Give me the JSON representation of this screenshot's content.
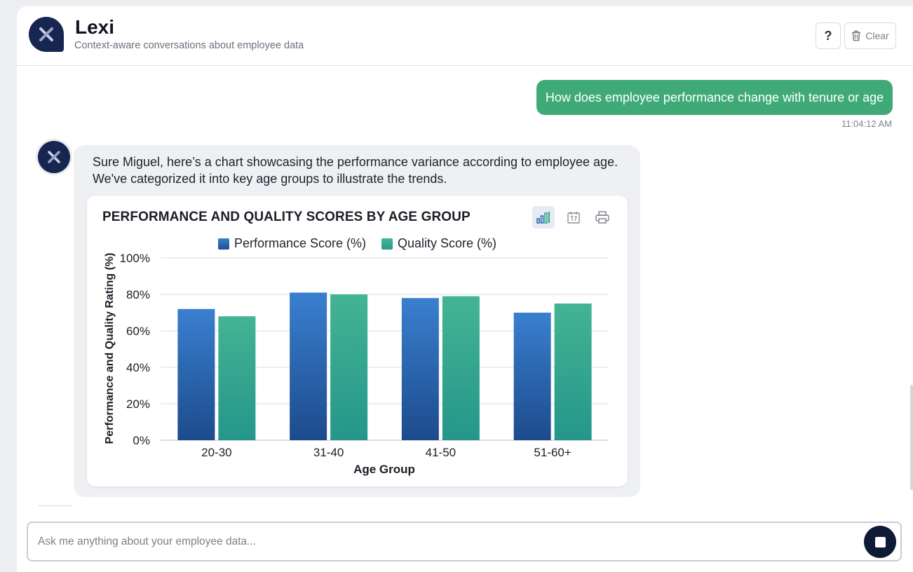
{
  "header": {
    "title": "Lexi",
    "subtitle": "Context-aware conversations about employee data",
    "help_label": "?",
    "clear_label": "Clear"
  },
  "conversation": {
    "user_message": "How does employee performance change with tenure or age",
    "user_timestamp": "11:04:12 AM",
    "bot_message_line1": "Sure Miguel, here’s a chart showcasing the performance variance according to employee age.",
    "bot_message_line2": "We've categorized it into key age groups to illustrate the trends."
  },
  "chart_toolbar": {
    "icons": [
      "bar-chart-icon",
      "calendar-icon",
      "print-icon"
    ]
  },
  "chart_data": {
    "type": "bar",
    "title": "PERFORMANCE AND QUALITY SCORES BY AGE GROUP",
    "xlabel": "Age Group",
    "ylabel": "Performance and Quality Rating (%)",
    "categories": [
      "20-30",
      "31-40",
      "41-50",
      "51-60+"
    ],
    "series": [
      {
        "name": "Performance Score (%)",
        "values": [
          72,
          81,
          78,
          70
        ],
        "color": "#2f6fbf"
      },
      {
        "name": "Quality Score (%)",
        "values": [
          68,
          80,
          79,
          75
        ],
        "color": "#3aaa8c"
      }
    ],
    "ylim": [
      0,
      100
    ],
    "yticks": [
      "0%",
      "20%",
      "40%",
      "60%",
      "80%",
      "100%"
    ],
    "grid": true,
    "legend_position": "top-center"
  },
  "composer": {
    "placeholder": "Ask me anything about your employee data..."
  },
  "colors": {
    "brand_navy": "#172551",
    "user_bubble": "#3faa78",
    "bot_bubble": "#eef0f3"
  }
}
